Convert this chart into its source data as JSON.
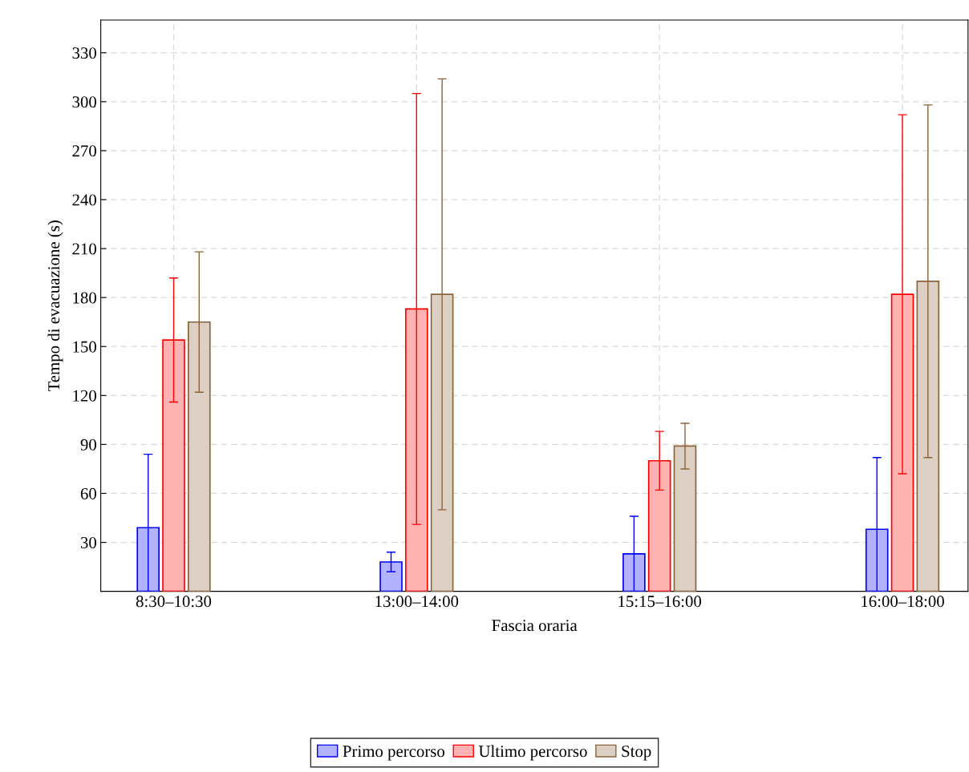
{
  "chart_data": {
    "type": "bar",
    "xlabel": "Fascia oraria",
    "ylabel": "Tempo di evacuazione (s)",
    "categories": [
      "8:30–10:30",
      "13:00–14:00",
      "15:15–16:00",
      "16:00–18:00"
    ],
    "series": [
      {
        "name": "Primo percorso",
        "color": "#0000ff",
        "values": [
          39,
          18,
          23,
          38
        ],
        "errors": [
          [
            0,
            84
          ],
          6,
          [
            0,
            46
          ],
          [
            0,
            82
          ]
        ]
      },
      {
        "name": "Ultimo percorso",
        "color": "#ff0000",
        "values": [
          154,
          173,
          80,
          182
        ],
        "errors": [
          38,
          132,
          18,
          110
        ]
      },
      {
        "name": "Stop",
        "color": "#8c6239",
        "values": [
          165,
          182,
          89,
          190
        ],
        "errors": [
          43,
          132,
          14,
          108
        ]
      }
    ],
    "ylim": [
      0,
      350
    ],
    "yticks": [
      30,
      60,
      90,
      120,
      150,
      180,
      210,
      240,
      270,
      300,
      330
    ],
    "grid": true,
    "legend": "bottom"
  }
}
